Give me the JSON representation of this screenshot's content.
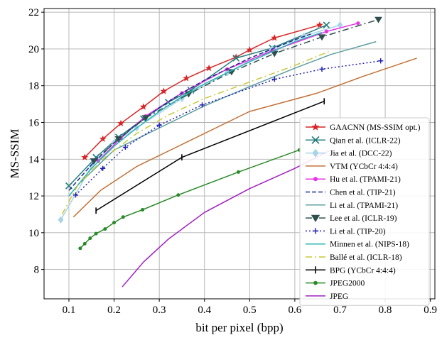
{
  "chart_data": {
    "type": "line",
    "xlabel": "bit per pixel (bpp)",
    "ylabel": "MS-SSIM",
    "xlim": [
      0.045,
      0.91
    ],
    "ylim": [
      6.4,
      22.2
    ],
    "xticks": [
      "0.1",
      "0.2",
      "0.3",
      "0.4",
      "0.5",
      "0.6",
      "0.7",
      "0.8",
      "0.9"
    ],
    "xtick_values": [
      0.1,
      0.2,
      0.3,
      0.4,
      0.5,
      0.6,
      0.7,
      0.8,
      0.9
    ],
    "yticks": [
      "8",
      "10",
      "12",
      "14",
      "16",
      "18",
      "20",
      "22"
    ],
    "ytick_values": [
      8,
      10,
      12,
      14,
      16,
      18,
      20,
      22
    ],
    "grid": true,
    "legend_position": "lower-right",
    "series": [
      {
        "name": "GAACNN (MS-SSIM opt.)",
        "color": "#d62728",
        "dash": "",
        "marker": "star",
        "x": [
          0.135,
          0.175,
          0.215,
          0.265,
          0.31,
          0.36,
          0.41,
          0.47,
          0.5,
          0.555,
          0.655
        ],
        "y": [
          14.1,
          15.1,
          15.95,
          16.85,
          17.7,
          18.4,
          18.95,
          19.55,
          19.95,
          20.6,
          21.3
        ]
      },
      {
        "name": "Qian et al. (ICLR-22)",
        "color": "#2a7f7f",
        "dash": "",
        "marker": "x",
        "x": [
          0.1,
          0.16,
          0.21,
          0.265,
          0.32,
          0.37,
          0.47,
          0.55,
          0.67
        ],
        "y": [
          12.55,
          14.1,
          15.2,
          16.2,
          17.1,
          17.75,
          19.5,
          20.05,
          21.3
        ]
      },
      {
        "name": "Jia et al. (DCC-22)",
        "color": "#a8d4e8",
        "dash": "",
        "marker": "diamond",
        "x": [
          0.082,
          0.15,
          0.2,
          0.25,
          0.35,
          0.45,
          0.55,
          0.62,
          0.7
        ],
        "y": [
          10.7,
          13.6,
          14.9,
          15.7,
          17.3,
          18.7,
          20.0,
          20.7,
          21.3
        ]
      },
      {
        "name": "VTM (YCbCr 4:4:4)",
        "color": "#c27236",
        "dash": "",
        "marker": "none",
        "x": [
          0.11,
          0.17,
          0.25,
          0.35,
          0.5,
          0.65,
          0.75,
          0.87
        ],
        "y": [
          10.85,
          12.3,
          13.6,
          14.8,
          16.6,
          17.6,
          18.5,
          19.5
        ]
      },
      {
        "name": "Hu et al. (TPAMI-21)",
        "color": "#e533e5",
        "dash": "",
        "marker": "circle",
        "x": [
          0.165,
          0.215,
          0.27,
          0.35,
          0.45,
          0.55,
          0.67,
          0.74
        ],
        "y": [
          13.9,
          15.15,
          16.35,
          17.6,
          18.9,
          19.9,
          20.95,
          21.4
        ]
      },
      {
        "name": "Chen et al. (TIP-21)",
        "color": "#1f2a8f",
        "dash": "6,3",
        "marker": "none",
        "x": [
          0.1,
          0.15,
          0.2,
          0.25,
          0.3,
          0.35,
          0.4,
          0.45,
          0.5,
          0.55,
          0.6,
          0.64
        ],
        "y": [
          12.3,
          13.7,
          14.9,
          15.9,
          16.8,
          17.6,
          18.3,
          18.9,
          19.5,
          20.0,
          20.5,
          20.85
        ]
      },
      {
        "name": "Li et al. (TPAMI-21)",
        "color": "#5f9ea0",
        "dash": "",
        "marker": "none",
        "x": [
          0.12,
          0.2,
          0.3,
          0.4,
          0.5,
          0.6,
          0.68,
          0.78
        ],
        "y": [
          12.6,
          14.5,
          15.7,
          16.9,
          17.95,
          18.95,
          19.7,
          20.4
        ]
      },
      {
        "name": "Lee et al. (ICLR-19)",
        "color": "#2f4f4f",
        "dash": "9,4,2,4",
        "marker": "triangle",
        "x": [
          0.155,
          0.21,
          0.27,
          0.365,
          0.46,
          0.555,
          0.66,
          0.785
        ],
        "y": [
          13.9,
          15.1,
          16.25,
          17.55,
          18.75,
          19.75,
          20.65,
          21.6
        ]
      },
      {
        "name": "Li et al. (TIP-20)",
        "color": "#2020b0",
        "dash": "2,3",
        "marker": "plus",
        "x": [
          0.115,
          0.175,
          0.225,
          0.3,
          0.395,
          0.555,
          0.66,
          0.79
        ],
        "y": [
          12.05,
          13.5,
          14.65,
          15.85,
          16.95,
          18.35,
          18.9,
          19.35
        ]
      },
      {
        "name": "Minnen et al. (NIPS-18)",
        "color": "#2ab5b5",
        "dash": "",
        "marker": "none",
        "x": [
          0.1,
          0.15,
          0.2,
          0.25,
          0.3,
          0.35,
          0.4,
          0.45,
          0.5,
          0.55,
          0.6,
          0.66
        ],
        "y": [
          12.0,
          13.5,
          14.7,
          15.7,
          16.6,
          17.4,
          18.1,
          18.7,
          19.3,
          19.85,
          20.4,
          20.9
        ]
      },
      {
        "name": "Ballé et al. (ICLR-18)",
        "color": "#c8c83a",
        "dash": "9,4,2,4",
        "marker": "none",
        "x": [
          0.085,
          0.12,
          0.18,
          0.25,
          0.32,
          0.4,
          0.5,
          0.6,
          0.675
        ],
        "y": [
          11.0,
          12.6,
          14.1,
          15.4,
          16.4,
          17.3,
          18.2,
          19.1,
          19.85
        ]
      },
      {
        "name": "BPG (YCbCr 4:4:4)",
        "color": "#000000",
        "dash": "",
        "marker": "vbar",
        "x": [
          0.16,
          0.35,
          0.665
        ],
        "y": [
          11.2,
          14.1,
          17.15
        ]
      },
      {
        "name": "JPEG2000",
        "color": "#2a8a2a",
        "dash": "",
        "marker": "dot",
        "x": [
          0.125,
          0.135,
          0.147,
          0.16,
          0.18,
          0.2,
          0.22,
          0.263,
          0.342,
          0.475,
          0.61
        ],
        "y": [
          9.15,
          9.4,
          9.7,
          9.95,
          10.2,
          10.55,
          10.85,
          11.25,
          12.05,
          13.3,
          14.5
        ]
      },
      {
        "name": "JPEG",
        "color": "#a020c0",
        "dash": "",
        "marker": "none",
        "x": [
          0.218,
          0.265,
          0.32,
          0.4,
          0.5,
          0.6,
          0.68
        ],
        "y": [
          7.05,
          8.4,
          9.65,
          11.1,
          12.4,
          13.5,
          14.5
        ]
      }
    ]
  }
}
